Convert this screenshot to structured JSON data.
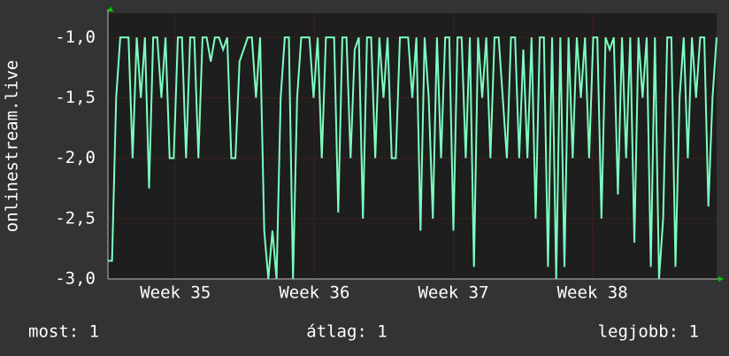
{
  "chart_data": {
    "type": "line",
    "y_label": "onlinestream.live",
    "values": [
      -2.85,
      -2.85,
      -1.5,
      -1,
      -1,
      -1,
      -2,
      -1,
      -1.5,
      -1,
      -2.25,
      -1,
      -1,
      -1.5,
      -1,
      -2,
      -2,
      -1,
      -1,
      -2,
      -1,
      -1,
      -2,
      -1,
      -1,
      -1.2,
      -1,
      -1,
      -1.1,
      -1,
      -2,
      -2,
      -1.2,
      -1.1,
      -1,
      -1,
      -1.5,
      -1,
      -2.6,
      -3,
      -2.6,
      -3,
      -1.5,
      -1,
      -1,
      -3,
      -1.5,
      -1,
      -1,
      -1,
      -1.5,
      -1,
      -2,
      -1,
      -1,
      -1,
      -2.45,
      -1,
      -1,
      -2,
      -1.1,
      -1,
      -2.5,
      -1,
      -1,
      -2,
      -1,
      -1.5,
      -1,
      -2,
      -2,
      -1,
      -1,
      -1,
      -1.5,
      -1,
      -2.6,
      -1,
      -1.5,
      -2.5,
      -1,
      -2,
      -1,
      -1,
      -2.6,
      -1,
      -1,
      -2,
      -1,
      -2.9,
      -1,
      -1.5,
      -1,
      -2,
      -1,
      -1,
      -1.5,
      -2,
      -1,
      -1,
      -2,
      -1.1,
      -2,
      -1,
      -2.5,
      -1,
      -1,
      -2.9,
      -1,
      -3,
      -1,
      -2.9,
      -1,
      -2,
      -1,
      -1.5,
      -1,
      -2,
      -1,
      -1,
      -2.5,
      -1,
      -1.1,
      -1,
      -2.3,
      -1,
      -2,
      -1,
      -2.7,
      -1,
      -1.5,
      -1,
      -2.9,
      -1,
      -3,
      -2.5,
      -1,
      -1,
      -2.9,
      -1.5,
      -1,
      -2,
      -1,
      -1.5,
      -1,
      -1,
      -2.4,
      -1.5,
      -1
    ],
    "color": "#7dffc0",
    "xlim": [
      0,
      148
    ],
    "xticks": [
      {
        "value": 16.4,
        "label": "Week 35"
      },
      {
        "value": 50.2,
        "label": "Week 36"
      },
      {
        "value": 84,
        "label": "Week 37"
      },
      {
        "value": 117.8,
        "label": "Week 38"
      }
    ],
    "ylim": [
      -3.0,
      -0.8
    ],
    "yticks": [
      {
        "value": -3.0,
        "label": "-3,0"
      },
      {
        "value": -2.5,
        "label": "-2,5"
      },
      {
        "value": -2.0,
        "label": "-2,0"
      },
      {
        "value": -1.5,
        "label": "-1,5"
      },
      {
        "value": -1.0,
        "label": "-1,0"
      }
    ],
    "grid": true,
    "stats": [
      "most: 1",
      "átlag: 1",
      "legjobb: 1"
    ]
  }
}
